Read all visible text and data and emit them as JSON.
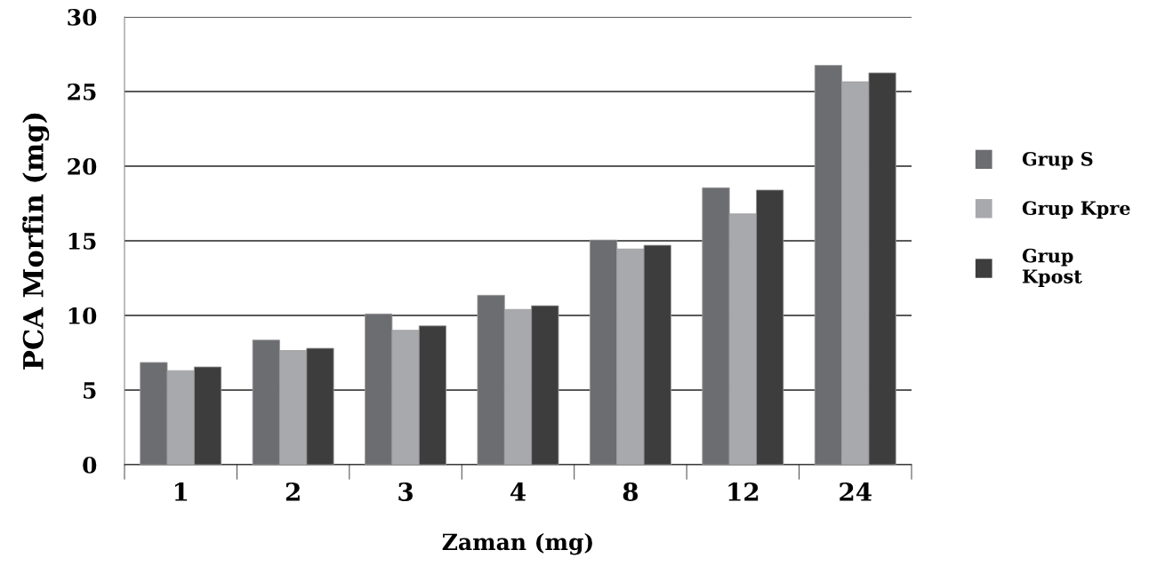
{
  "chart_data": {
    "type": "bar",
    "xlabel": "Zaman (mg)",
    "ylabel": "PCA Morfin (mg)",
    "categories": [
      "1",
      "2",
      "3",
      "4",
      "8",
      "12",
      "24"
    ],
    "series": [
      {
        "name": "Grup S",
        "color": "#6c6d71",
        "values": [
          6.85,
          8.35,
          10.1,
          11.35,
          15.05,
          18.55,
          26.75
        ]
      },
      {
        "name": "Grup Kpre",
        "color": "#a8a9ad",
        "values": [
          6.3,
          7.65,
          9.0,
          10.4,
          14.45,
          16.8,
          25.65
        ]
      },
      {
        "name": "Grup\nKpost",
        "color": "#3d3d3d",
        "values": [
          6.55,
          7.8,
          9.3,
          10.65,
          14.7,
          18.4,
          26.25
        ]
      }
    ],
    "ylim": [
      0,
      30
    ],
    "yticks": [
      0,
      5,
      10,
      15,
      20,
      25,
      30
    ],
    "grid": "y",
    "legend": "right"
  }
}
